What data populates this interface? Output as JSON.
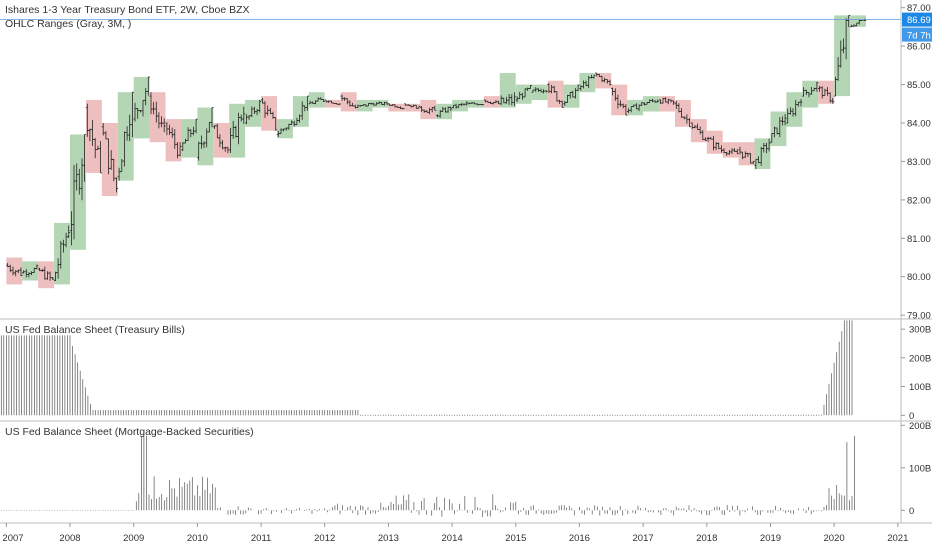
{
  "title": "Ishares 1-3 Year Treasury Bond ETF, 2W, Cboe BZX",
  "indicator": "OHLC Ranges (Gray, 3M, )",
  "panel2_title": "US Fed Balance Sheet (Treasury Bills)",
  "panel3_title": "US Fed Balance Sheet (Mortgage-Backed Securities)",
  "last_price": "86.69",
  "countdown": "7d 7h",
  "colors": {
    "up": "#9cc89c",
    "down": "#e8a9a9",
    "bar": "#222222",
    "line": "#5b9bd5",
    "badge": "#1e88e5",
    "vol": "#555555"
  },
  "chart_data": [
    {
      "type": "ohlc",
      "title": "Ishares 1-3 Year Treasury Bond ETF, 2W, Cboe BZX",
      "x_ticks": [
        "2007",
        "2008",
        "2009",
        "2010",
        "2011",
        "2012",
        "2013",
        "2014",
        "2015",
        "2016",
        "2017",
        "2018",
        "2019",
        "2020",
        "2021"
      ],
      "y_ticks": [
        "87.00",
        "86.00",
        "85.00",
        "84.00",
        "83.00",
        "82.00",
        "81.00",
        "80.00",
        "79.00"
      ],
      "ylim": [
        78.9,
        87.2
      ],
      "xlim": [
        2006.9,
        2021.05
      ],
      "quarterly_ranges": [
        {
          "t": 2007.0,
          "o": 80.3,
          "h": 80.5,
          "l": 79.8,
          "c": 80.1
        },
        {
          "t": 2007.25,
          "o": 80.1,
          "h": 80.4,
          "l": 79.9,
          "c": 80.2
        },
        {
          "t": 2007.5,
          "o": 80.2,
          "h": 80.4,
          "l": 79.7,
          "c": 79.9
        },
        {
          "t": 2007.75,
          "o": 79.9,
          "h": 81.4,
          "l": 79.8,
          "c": 81.3
        },
        {
          "t": 2008.0,
          "o": 81.2,
          "h": 83.7,
          "l": 80.7,
          "c": 83.6
        },
        {
          "t": 2008.25,
          "o": 84.4,
          "h": 84.6,
          "l": 82.7,
          "c": 82.8
        },
        {
          "t": 2008.5,
          "o": 83.9,
          "h": 84.0,
          "l": 82.1,
          "c": 82.3
        },
        {
          "t": 2008.75,
          "o": 82.6,
          "h": 84.8,
          "l": 82.5,
          "c": 84.7
        },
        {
          "t": 2009.0,
          "o": 84.1,
          "h": 85.2,
          "l": 83.6,
          "c": 85.0
        },
        {
          "t": 2009.25,
          "o": 84.7,
          "h": 84.8,
          "l": 83.5,
          "c": 83.7
        },
        {
          "t": 2009.5,
          "o": 84.0,
          "h": 84.1,
          "l": 83.0,
          "c": 83.2
        },
        {
          "t": 2009.75,
          "o": 83.3,
          "h": 84.1,
          "l": 83.1,
          "c": 84.0
        },
        {
          "t": 2010.0,
          "o": 83.1,
          "h": 84.4,
          "l": 82.9,
          "c": 84.3
        },
        {
          "t": 2010.25,
          "o": 83.9,
          "h": 84.0,
          "l": 83.1,
          "c": 83.3
        },
        {
          "t": 2010.5,
          "o": 83.3,
          "h": 84.5,
          "l": 83.1,
          "c": 84.4
        },
        {
          "t": 2010.75,
          "o": 84.0,
          "h": 84.6,
          "l": 83.9,
          "c": 84.5
        },
        {
          "t": 2011.0,
          "o": 84.6,
          "h": 84.7,
          "l": 83.8,
          "c": 83.9
        },
        {
          "t": 2011.25,
          "o": 83.7,
          "h": 84.1,
          "l": 83.6,
          "c": 84.0
        },
        {
          "t": 2011.5,
          "o": 84.0,
          "h": 84.7,
          "l": 83.9,
          "c": 84.6
        },
        {
          "t": 2011.75,
          "o": 84.5,
          "h": 84.8,
          "l": 84.4,
          "c": 84.6
        },
        {
          "t": 2012.0,
          "o": 84.6,
          "h": 84.6,
          "l": 84.4,
          "c": 84.5
        },
        {
          "t": 2012.25,
          "o": 84.7,
          "h": 84.8,
          "l": 84.3,
          "c": 84.4
        },
        {
          "t": 2012.5,
          "o": 84.4,
          "h": 84.6,
          "l": 84.3,
          "c": 84.5
        },
        {
          "t": 2012.75,
          "o": 84.5,
          "h": 84.6,
          "l": 84.4,
          "c": 84.5
        },
        {
          "t": 2013.0,
          "o": 84.5,
          "h": 84.5,
          "l": 84.3,
          "c": 84.4
        },
        {
          "t": 2013.25,
          "o": 84.5,
          "h": 84.5,
          "l": 84.3,
          "c": 84.4
        },
        {
          "t": 2013.5,
          "o": 84.4,
          "h": 84.6,
          "l": 84.1,
          "c": 84.3
        },
        {
          "t": 2013.75,
          "o": 84.2,
          "h": 84.5,
          "l": 84.1,
          "c": 84.4
        },
        {
          "t": 2014.0,
          "o": 84.4,
          "h": 84.6,
          "l": 84.3,
          "c": 84.5
        },
        {
          "t": 2014.25,
          "o": 84.5,
          "h": 84.6,
          "l": 84.4,
          "c": 84.5
        },
        {
          "t": 2014.5,
          "o": 84.6,
          "h": 84.7,
          "l": 84.4,
          "c": 84.5
        },
        {
          "t": 2014.75,
          "o": 84.5,
          "h": 85.3,
          "l": 84.4,
          "c": 84.6
        },
        {
          "t": 2015.0,
          "o": 84.6,
          "h": 85.0,
          "l": 84.5,
          "c": 84.9
        },
        {
          "t": 2015.25,
          "o": 84.8,
          "h": 85.0,
          "l": 84.6,
          "c": 84.9
        },
        {
          "t": 2015.5,
          "o": 85.0,
          "h": 85.1,
          "l": 84.4,
          "c": 84.5
        },
        {
          "t": 2015.75,
          "o": 84.5,
          "h": 85.0,
          "l": 84.4,
          "c": 84.9
        },
        {
          "t": 2016.0,
          "o": 84.9,
          "h": 85.3,
          "l": 84.8,
          "c": 85.2
        },
        {
          "t": 2016.25,
          "o": 85.3,
          "h": 85.3,
          "l": 84.9,
          "c": 85.0
        },
        {
          "t": 2016.5,
          "o": 84.9,
          "h": 85.0,
          "l": 84.2,
          "c": 84.3
        },
        {
          "t": 2016.75,
          "o": 84.3,
          "h": 84.6,
          "l": 84.2,
          "c": 84.5
        },
        {
          "t": 2017.0,
          "o": 84.5,
          "h": 84.7,
          "l": 84.3,
          "c": 84.6
        },
        {
          "t": 2017.25,
          "o": 84.6,
          "h": 84.7,
          "l": 84.3,
          "c": 84.5
        },
        {
          "t": 2017.5,
          "o": 84.5,
          "h": 84.6,
          "l": 83.9,
          "c": 84.0
        },
        {
          "t": 2017.75,
          "o": 84.0,
          "h": 84.1,
          "l": 83.5,
          "c": 83.6
        },
        {
          "t": 2018.0,
          "o": 83.6,
          "h": 83.8,
          "l": 83.2,
          "c": 83.3
        },
        {
          "t": 2018.25,
          "o": 83.3,
          "h": 83.5,
          "l": 83.1,
          "c": 83.2
        },
        {
          "t": 2018.5,
          "o": 83.3,
          "h": 83.5,
          "l": 82.9,
          "c": 83.0
        },
        {
          "t": 2018.75,
          "o": 82.9,
          "h": 83.6,
          "l": 82.8,
          "c": 83.5
        },
        {
          "t": 2019.0,
          "o": 83.5,
          "h": 84.3,
          "l": 83.4,
          "c": 84.2
        },
        {
          "t": 2019.25,
          "o": 84.0,
          "h": 84.8,
          "l": 83.9,
          "c": 84.7
        },
        {
          "t": 2019.5,
          "o": 84.7,
          "h": 85.1,
          "l": 84.4,
          "c": 85.0
        },
        {
          "t": 2019.75,
          "o": 84.9,
          "h": 85.1,
          "l": 84.5,
          "c": 84.6
        },
        {
          "t": 2020.0,
          "o": 84.7,
          "h": 86.8,
          "l": 84.7,
          "c": 86.7
        },
        {
          "t": 2020.25,
          "o": 86.5,
          "h": 86.8,
          "l": 86.5,
          "c": 86.7
        }
      ]
    },
    {
      "type": "bar",
      "title": "US Fed Balance Sheet (Treasury Bills)",
      "y_ticks": [
        "300B",
        "200B",
        "100B",
        "0"
      ],
      "ylim": [
        -20,
        335
      ],
      "series": [
        {
          "from": 2006.9,
          "to": 2008.0,
          "value": 278
        },
        {
          "from": 2008.0,
          "to": 2008.17,
          "value": 270
        },
        {
          "from": 2008.17,
          "to": 2008.3,
          "value": 180
        },
        {
          "from": 2008.3,
          "to": 2008.35,
          "value": 60
        },
        {
          "from": 2008.35,
          "to": 2012.55,
          "value": 18
        },
        {
          "from": 2012.55,
          "to": 2019.8,
          "value": 0
        },
        {
          "from": 2019.8,
          "to": 2020.3,
          "value": 330
        }
      ]
    },
    {
      "type": "bar",
      "title": "US Fed Balance Sheet (Mortgage-Backed Securities)",
      "y_ticks": [
        "200B",
        "100B",
        "0"
      ],
      "ylim": [
        -30,
        210
      ],
      "highlights": [
        {
          "t": 2009.15,
          "value": 175
        },
        {
          "t": 2009.3,
          "value": 80
        },
        {
          "t": 2020.2,
          "value": 160
        },
        {
          "t": 2020.3,
          "value": 175
        }
      ]
    }
  ]
}
